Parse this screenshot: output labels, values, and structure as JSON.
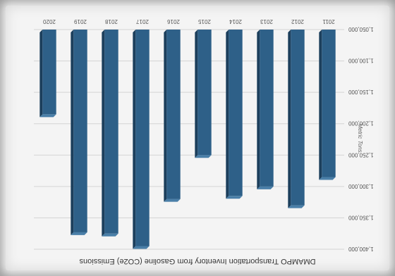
{
  "chart_data": {
    "type": "bar",
    "title": "DMAMPO Transportation Inventory from Gasoline (CO2e) Emissions",
    "ylabel": "Metric Tons",
    "xlabel": "",
    "categories": [
      "2011",
      "2012",
      "2013",
      "2014",
      "2015",
      "2016",
      "2017",
      "2018",
      "2019",
      "2020"
    ],
    "values": [
      1285000,
      1330000,
      1300000,
      1315000,
      1250000,
      1320000,
      1395000,
      1375000,
      1373000,
      1185000
    ],
    "ylim": [
      1050000,
      1400000
    ],
    "yticks": [
      "1,050,000",
      "1,100,000",
      "1,150,000",
      "1,200,000",
      "1,250,000",
      "1,300,000",
      "1,350,000",
      "1,400,000"
    ],
    "ytick_values": [
      1050000,
      1100000,
      1150000,
      1200000,
      1250000,
      1300000,
      1350000,
      1400000
    ],
    "grid": true,
    "bar_color": "#2e6088",
    "bar_side_color": "#1c3f5c",
    "bar_top_color": "#4a7fa8"
  }
}
